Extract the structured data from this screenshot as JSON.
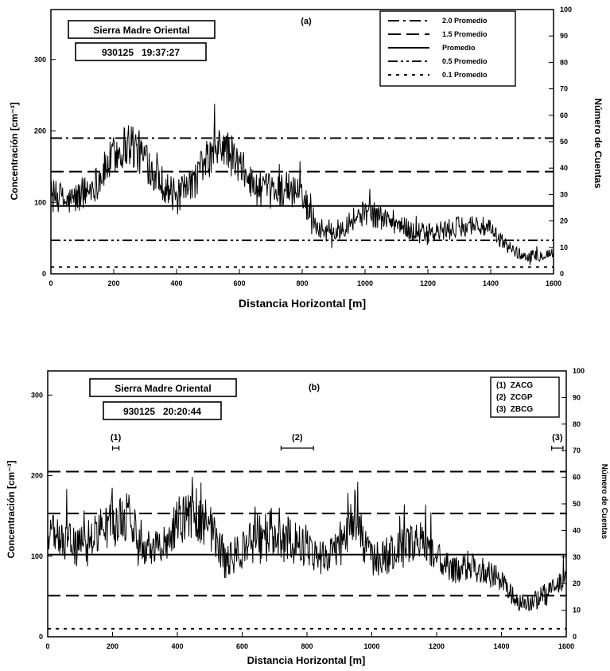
{
  "chart_data": [
    {
      "type": "line",
      "panel_label": "(a)",
      "header_box": {
        "title": "Sierra Madre Oriental",
        "timestamp": "930125   19:37:27"
      },
      "xlabel": "Distancia Horizontal [m]",
      "ylabel": "Concentración [cm⁻³]",
      "y2label": "Número de Cuentas",
      "xlim": [
        0,
        1600
      ],
      "ylim": [
        0,
        370
      ],
      "y2lim": [
        0,
        100
      ],
      "xticks": [
        "0",
        "200",
        "400",
        "600",
        "800",
        "1000",
        "1200",
        "1400",
        "1600"
      ],
      "yticks": [
        "0",
        "100",
        "200",
        "300"
      ],
      "y2ticks": [
        "0",
        "10",
        "20",
        "30",
        "40",
        "50",
        "60",
        "70",
        "80",
        "90",
        "100"
      ],
      "legend": {
        "position": "top-right",
        "entries": [
          {
            "label": "2.0 Promedio",
            "style": "dash-dot"
          },
          {
            "label": "1.5 Promedio",
            "style": "long-dash"
          },
          {
            "label": "Promedio",
            "style": "solid"
          },
          {
            "label": "0.5 Promedio",
            "style": "dash-dot-dot"
          },
          {
            "label": "0.1 Promedio",
            "style": "dotted"
          }
        ]
      },
      "reference_lines": [
        {
          "factor": 2.0,
          "y": 190,
          "style": "dash-dot"
        },
        {
          "factor": 1.5,
          "y": 143,
          "style": "long-dash"
        },
        {
          "factor": 1.0,
          "y": 95,
          "style": "solid"
        },
        {
          "factor": 0.5,
          "y": 47,
          "style": "dash-dot-dot"
        },
        {
          "factor": 0.1,
          "y": 9.5,
          "style": "dotted"
        }
      ],
      "series": [
        {
          "x": [
            0,
            50,
            100,
            150,
            200,
            250,
            300,
            350,
            400,
            450,
            500,
            550,
            600,
            650,
            700,
            750,
            800,
            850,
            900,
            950,
            1000,
            1050,
            1100,
            1150,
            1200,
            1250,
            1300,
            1350,
            1400,
            1450,
            1500,
            1550,
            1600
          ],
          "y": [
            110,
            100,
            110,
            130,
            165,
            185,
            160,
            130,
            105,
            125,
            160,
            180,
            150,
            120,
            115,
            120,
            110,
            65,
            55,
            75,
            85,
            80,
            70,
            60,
            55,
            60,
            65,
            70,
            60,
            40,
            25,
            25,
            30
          ],
          "spread": [
            25,
            20,
            25,
            25,
            30,
            35,
            30,
            25,
            25,
            25,
            30,
            30,
            30,
            25,
            25,
            25,
            25,
            15,
            15,
            18,
            18,
            18,
            15,
            15,
            15,
            15,
            15,
            15,
            15,
            10,
            8,
            8,
            8
          ]
        }
      ]
    },
    {
      "type": "line",
      "panel_label": "(b)",
      "header_box": {
        "title": "Sierra Madre Oriental",
        "timestamp": "930125   20:20:44"
      },
      "xlabel": "Distancia Horizontal [m]",
      "ylabel": "Concentración [cm⁻³]",
      "y2label": "Número de Cuentas",
      "xlim": [
        0,
        1600
      ],
      "ylim": [
        0,
        330
      ],
      "y2lim": [
        0,
        100
      ],
      "xticks": [
        "0",
        "200",
        "400",
        "600",
        "800",
        "1000",
        "1200",
        "1400",
        "1600"
      ],
      "yticks": [
        "0",
        "100",
        "200",
        "300"
      ],
      "y2ticks": [
        "0",
        "10",
        "20",
        "30",
        "40",
        "50",
        "60",
        "70",
        "80",
        "90",
        "100"
      ],
      "legend": {
        "position": "top-right",
        "entries": [
          {
            "label": "(1)  ZACG"
          },
          {
            "label": "(2)  ZCGP"
          },
          {
            "label": "(3)  ZBCG"
          }
        ]
      },
      "annotations": [
        {
          "label": "(1)",
          "x_start": 200,
          "x_end": 220
        },
        {
          "label": "(2)",
          "x_start": 720,
          "x_end": 820
        },
        {
          "label": "(3)",
          "x_start": 1555,
          "x_end": 1590
        }
      ],
      "reference_lines": [
        {
          "factor": 2.0,
          "y": 205,
          "style": "long-dash"
        },
        {
          "factor": 1.5,
          "y": 153,
          "style": "long-dash"
        },
        {
          "factor": 1.0,
          "y": 102,
          "style": "solid"
        },
        {
          "factor": 0.5,
          "y": 51,
          "style": "long-dash"
        },
        {
          "factor": 0.1,
          "y": 10,
          "style": "dotted"
        }
      ],
      "series": [
        {
          "x": [
            0,
            50,
            100,
            150,
            200,
            250,
            300,
            350,
            400,
            450,
            500,
            550,
            600,
            650,
            700,
            750,
            800,
            850,
            900,
            950,
            1000,
            1050,
            1100,
            1150,
            1200,
            1250,
            1300,
            1350,
            1400,
            1450,
            1500,
            1550,
            1600
          ],
          "y": [
            130,
            120,
            110,
            130,
            140,
            150,
            115,
            110,
            145,
            150,
            140,
            90,
            110,
            120,
            130,
            120,
            110,
            100,
            110,
            150,
            90,
            100,
            110,
            120,
            100,
            80,
            90,
            80,
            70,
            40,
            45,
            55,
            70
          ],
          "spread": [
            25,
            25,
            25,
            30,
            30,
            30,
            25,
            25,
            30,
            30,
            30,
            25,
            25,
            30,
            35,
            30,
            25,
            25,
            25,
            30,
            25,
            25,
            25,
            25,
            20,
            18,
            18,
            18,
            15,
            12,
            12,
            15,
            15
          ]
        }
      ]
    }
  ]
}
